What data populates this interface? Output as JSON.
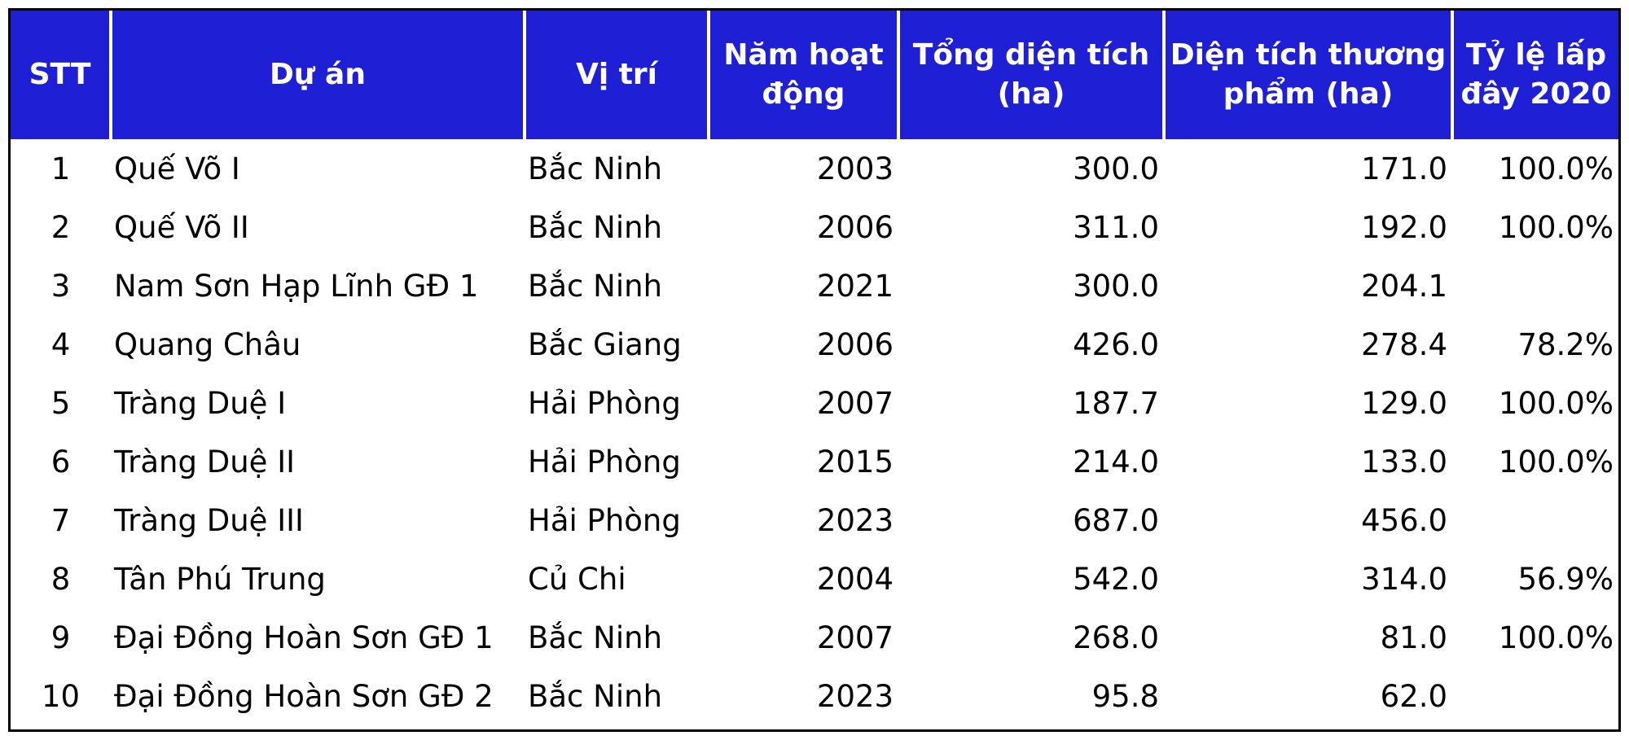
{
  "table": {
    "headers": [
      "STT",
      "Dự án",
      "Vị trí",
      "Năm hoạt động",
      "Tổng diện tích (ha)",
      "Diện tích thương phẩm (ha)",
      "Tỷ lệ lấp đây 2020"
    ],
    "rows": [
      [
        "1",
        "Quế Võ I",
        "Bắc Ninh",
        "2003",
        "300.0",
        "171.0",
        "100.0%"
      ],
      [
        "2",
        "Quế Võ II",
        "Bắc Ninh",
        "2006",
        "311.0",
        "192.0",
        "100.0%"
      ],
      [
        "3",
        "Nam Sơn Hạp Lĩnh GĐ 1",
        "Bắc Ninh",
        "2021",
        "300.0",
        "204.1",
        null
      ],
      [
        "4",
        "Quang Châu",
        "Bắc Giang",
        "2006",
        "426.0",
        "278.4",
        "78.2%"
      ],
      [
        "5",
        "Tràng Duệ I",
        "Hải Phòng",
        "2007",
        "187.7",
        "129.0",
        "100.0%"
      ],
      [
        "6",
        "Tràng Duệ II",
        "Hải Phòng",
        "2015",
        "214.0",
        "133.0",
        "100.0%"
      ],
      [
        "7",
        "Tràng Duệ III",
        "Hải Phòng",
        "2023",
        "687.0",
        "456.0",
        null
      ],
      [
        "8",
        "Tân Phú Trung",
        "Củ Chi",
        "2004",
        "542.0",
        "314.0",
        "56.9%"
      ],
      [
        "9",
        "Đại Đồng Hoàn Sơn GĐ 1",
        "Bắc Ninh",
        "2007",
        "268.0",
        "81.0",
        "100.0%"
      ],
      [
        "10",
        "Đại Đồng Hoàn Sơn GĐ 2",
        "Bắc Ninh",
        "2023",
        "95.8",
        "62.0",
        null
      ]
    ]
  }
}
